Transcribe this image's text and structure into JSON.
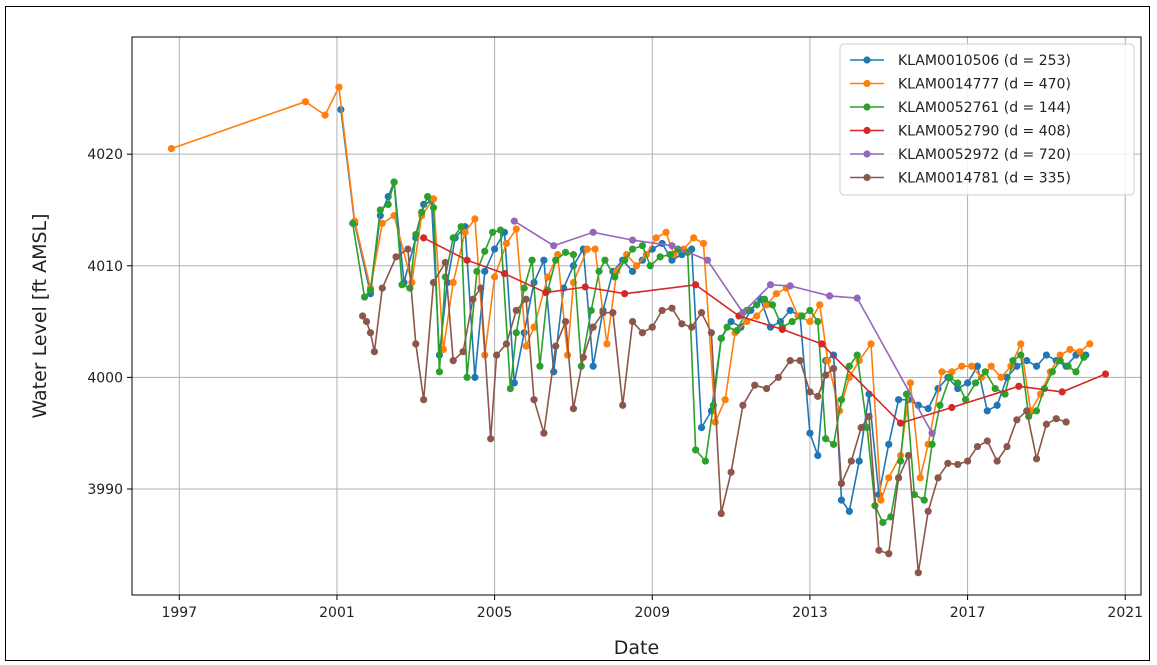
{
  "chart_data": {
    "type": "line",
    "title": "",
    "xlabel": "Date",
    "ylabel": "Water Level [ft AMSL]",
    "xlim": [
      1995.8,
      2021.4
    ],
    "ylim": [
      3980.5,
      4030.5
    ],
    "xticks": [
      1997,
      2001,
      2005,
      2009,
      2013,
      2017,
      2021
    ],
    "yticks": [
      3990,
      4000,
      4010,
      4020
    ],
    "grid": true,
    "legend_position": "top-right",
    "series": [
      {
        "name": "KLAM0010506 (d = 253)",
        "color": "#1f77b4",
        "x": [
          2001.1,
          2001.45,
          2001.85,
          2002.1,
          2002.3,
          2002.45,
          2002.7,
          2003.0,
          2003.2,
          2003.4,
          2003.6,
          2003.8,
          2004.0,
          2004.25,
          2004.5,
          2004.75,
          2005.0,
          2005.25,
          2005.5,
          2005.75,
          2006.0,
          2006.25,
          2006.5,
          2006.75,
          2007.0,
          2007.25,
          2007.5,
          2007.75,
          2008.0,
          2008.25,
          2008.5,
          2008.75,
          2009.0,
          2009.25,
          2009.5,
          2009.75,
          2010.0,
          2010.25,
          2010.5,
          2010.75,
          2011.0,
          2011.25,
          2011.5,
          2011.75,
          2012.0,
          2012.25,
          2012.5,
          2012.75,
          2013.0,
          2013.2,
          2013.4,
          2013.6,
          2013.8,
          2014.0,
          2014.25,
          2014.5,
          2014.75,
          2015.0,
          2015.25,
          2015.5,
          2015.75,
          2016.0,
          2016.25,
          2016.5,
          2016.75,
          2017.0,
          2017.25,
          2017.5,
          2017.75,
          2018.0,
          2018.25,
          2018.5,
          2018.75,
          2019.0,
          2019.25,
          2019.5,
          2019.75,
          2020.0
        ],
        "y": [
          4024.0,
          4013.8,
          4007.5,
          4014.5,
          4016.2,
          4017.5,
          4008.5,
          4012.5,
          4015.5,
          4015.8,
          4002.0,
          4008.5,
          4012.5,
          4013.5,
          4000.0,
          4009.5,
          4011.5,
          4013.0,
          3999.5,
          4004.0,
          4008.5,
          4010.5,
          4000.5,
          4008.0,
          4010.0,
          4011.5,
          4001.0,
          4006.0,
          4009.5,
          4010.5,
          4009.5,
          4010.5,
          4011.5,
          4012.0,
          4010.5,
          4011.0,
          4011.5,
          3995.5,
          3997.0,
          4003.5,
          4005.0,
          4004.5,
          4006.0,
          4007.0,
          4004.5,
          4005.0,
          4006.0,
          4005.5,
          3995.0,
          3993.0,
          4001.5,
          4002.0,
          3989.0,
          3988.0,
          3992.5,
          3998.5,
          3989.5,
          3994.0,
          3998.0,
          3998.0,
          3997.5,
          3997.2,
          3999.0,
          4000.0,
          3999.0,
          3999.5,
          4001.0,
          3997.0,
          3997.5,
          4000.0,
          4001.0,
          4001.5,
          4001.0,
          4002.0,
          4001.5,
          4001.0,
          4002.0,
          4002.0
        ]
      },
      {
        "name": "KLAM0014777 (d = 470)",
        "color": "#ff7f0e",
        "x": [
          1996.8,
          2000.2,
          2000.7,
          2001.05,
          2001.45,
          2001.85,
          2002.15,
          2002.45,
          2002.9,
          2003.15,
          2003.45,
          2003.7,
          2003.95,
          2004.25,
          2004.5,
          2004.75,
          2005.0,
          2005.3,
          2005.55,
          2005.8,
          2006.0,
          2006.35,
          2006.6,
          2006.85,
          2007.0,
          2007.35,
          2007.55,
          2007.85,
          2008.1,
          2008.35,
          2008.6,
          2008.85,
          2009.1,
          2009.35,
          2009.55,
          2009.8,
          2010.05,
          2010.3,
          2010.6,
          2010.85,
          2011.1,
          2011.4,
          2011.65,
          2011.9,
          2012.15,
          2012.4,
          2012.7,
          2013.0,
          2013.25,
          2013.45,
          2013.75,
          2014.0,
          2014.25,
          2014.55,
          2014.8,
          2015.0,
          2015.3,
          2015.55,
          2015.8,
          2016.0,
          2016.35,
          2016.6,
          2016.85,
          2017.1,
          2017.35,
          2017.6,
          2017.85,
          2018.1,
          2018.35,
          2018.6,
          2018.85,
          2019.1,
          2019.35,
          2019.6,
          2019.85,
          2020.1
        ],
        "y": [
          4020.5,
          4024.7,
          4023.5,
          4026.0,
          4014.0,
          4008.0,
          4013.8,
          4014.5,
          4008.5,
          4014.5,
          4016.0,
          4002.5,
          4008.5,
          4013.0,
          4014.2,
          4002.0,
          4009.0,
          4012.0,
          4013.3,
          4002.8,
          4004.5,
          4009.0,
          4011.0,
          4002.0,
          4008.5,
          4011.5,
          4011.5,
          4003.0,
          4009.5,
          4011.0,
          4010.0,
          4011.0,
          4012.5,
          4013.0,
          4011.0,
          4011.5,
          4012.5,
          4012.0,
          3996.0,
          3998.0,
          4004.0,
          4005.0,
          4005.5,
          4006.5,
          4007.5,
          4008.0,
          4005.5,
          4005.0,
          4006.5,
          4001.5,
          3997.0,
          4000.0,
          4001.5,
          4003.0,
          3989.0,
          3991.0,
          3993.0,
          3999.5,
          3991.0,
          3994.0,
          4000.5,
          4000.5,
          4001.0,
          4001.0,
          4000.0,
          4001.0,
          4000.0,
          4001.0,
          4003.0,
          3997.0,
          3998.5,
          4000.5,
          4002.0,
          4002.5,
          4002.3,
          4003.0
        ]
      },
      {
        "name": "KLAM0052761 (d = 144)",
        "color": "#2ca02c",
        "x": [
          2001.4,
          2001.7,
          2001.85,
          2002.1,
          2002.3,
          2002.45,
          2002.65,
          2002.85,
          2003.0,
          2003.15,
          2003.3,
          2003.45,
          2003.6,
          2003.75,
          2003.95,
          2004.15,
          2004.3,
          2004.55,
          2004.75,
          2004.95,
          2005.15,
          2005.4,
          2005.55,
          2005.75,
          2005.95,
          2006.15,
          2006.35,
          2006.55,
          2006.8,
          2007.0,
          2007.2,
          2007.45,
          2007.65,
          2007.8,
          2008.05,
          2008.3,
          2008.5,
          2008.75,
          2008.95,
          2009.2,
          2009.45,
          2009.65,
          2009.9,
          2010.1,
          2010.35,
          2010.55,
          2010.75,
          2010.9,
          2011.15,
          2011.4,
          2011.65,
          2011.85,
          2012.05,
          2012.3,
          2012.55,
          2012.8,
          2013.0,
          2013.2,
          2013.4,
          2013.6,
          2013.8,
          2014.0,
          2014.2,
          2014.45,
          2014.65,
          2014.85,
          2015.05,
          2015.3,
          2015.45,
          2015.65,
          2015.9,
          2016.1,
          2016.3,
          2016.55,
          2016.75,
          2016.95,
          2017.2,
          2017.45,
          2017.7,
          2017.95,
          2018.15,
          2018.35,
          2018.55,
          2018.75,
          2018.95,
          2019.15,
          2019.35,
          2019.55,
          2019.75,
          2019.95
        ],
        "y": [
          4013.8,
          4007.2,
          4007.8,
          4015.0,
          4015.5,
          4017.5,
          4008.3,
          4008.0,
          4012.8,
          4014.8,
          4016.2,
          4015.2,
          4000.5,
          4009.0,
          4012.5,
          4013.5,
          4000.0,
          4009.5,
          4011.3,
          4013.0,
          4013.2,
          3999.0,
          4004.0,
          4008.0,
          4010.5,
          4001.0,
          4007.8,
          4010.5,
          4011.2,
          4011.0,
          4001.0,
          4006.0,
          4009.5,
          4010.5,
          4009.0,
          4010.5,
          4011.5,
          4011.8,
          4010.0,
          4010.8,
          4011.0,
          4011.5,
          4011.2,
          3993.5,
          3992.5,
          3997.5,
          4003.5,
          4004.5,
          4004.2,
          4006.0,
          4006.5,
          4007.0,
          4006.5,
          4004.5,
          4005.0,
          4005.5,
          4006.0,
          4005.0,
          3994.5,
          3994.0,
          3998.0,
          4001.0,
          4002.0,
          3995.5,
          3988.5,
          3987.0,
          3987.5,
          3992.5,
          3998.5,
          3989.5,
          3989.0,
          3994.0,
          3997.5,
          4000.0,
          3999.5,
          3998.0,
          3999.5,
          4000.5,
          3999.0,
          3998.5,
          4001.5,
          4002.0,
          3996.5,
          3997.0,
          3999.0,
          4000.5,
          4001.5,
          4001.0,
          4000.5,
          4001.8
        ]
      },
      {
        "name": "KLAM0052790 (d = 408)",
        "color": "#d62728",
        "x": [
          2003.2,
          2004.3,
          2005.25,
          2006.3,
          2007.3,
          2008.3,
          2010.1,
          2011.2,
          2012.3,
          2013.3,
          2015.3,
          2016.6,
          2018.3,
          2019.4,
          2020.5
        ],
        "y": [
          4012.5,
          4010.5,
          4009.3,
          4007.6,
          4008.1,
          4007.5,
          4008.3,
          4005.5,
          4004.3,
          4003.0,
          3995.9,
          3997.3,
          3999.2,
          3998.7,
          4000.3
        ]
      },
      {
        "name": "KLAM0052972 (d = 720)",
        "color": "#9467bd",
        "x": [
          2005.5,
          2006.5,
          2007.5,
          2008.5,
          2009.5,
          2010.4,
          2011.3,
          2012.0,
          2012.5,
          2013.5,
          2014.2,
          2016.1
        ],
        "y": [
          4014.0,
          4011.8,
          4013.0,
          4012.3,
          4011.8,
          4010.5,
          4005.8,
          4008.3,
          4008.2,
          4007.3,
          4007.1,
          3995.0
        ]
      },
      {
        "name": "KLAM0014781 (d = 335)",
        "color": "#8c564b",
        "x": [
          2001.65,
          2001.75,
          2001.85,
          2001.95,
          2002.15,
          2002.5,
          2002.8,
          2003.0,
          2003.2,
          2003.45,
          2003.75,
          2003.95,
          2004.2,
          2004.45,
          2004.65,
          2004.9,
          2005.05,
          2005.3,
          2005.55,
          2005.8,
          2006.0,
          2006.25,
          2006.55,
          2006.8,
          2007.0,
          2007.25,
          2007.5,
          2007.75,
          2008.0,
          2008.25,
          2008.5,
          2008.75,
          2009.0,
          2009.25,
          2009.5,
          2009.75,
          2010.0,
          2010.25,
          2010.5,
          2010.75,
          2011.0,
          2011.3,
          2011.6,
          2011.9,
          2012.2,
          2012.5,
          2012.75,
          2013.0,
          2013.2,
          2013.4,
          2013.6,
          2013.8,
          2014.05,
          2014.3,
          2014.5,
          2014.75,
          2015.0,
          2015.25,
          2015.5,
          2015.75,
          2016.0,
          2016.25,
          2016.5,
          2016.75,
          2017.0,
          2017.25,
          2017.5,
          2017.75,
          2018.0,
          2018.25,
          2018.5,
          2018.75,
          2019.0,
          2019.25,
          2019.5
        ],
        "y": [
          4005.5,
          4005.0,
          4004.0,
          4002.3,
          4008.0,
          4010.8,
          4011.5,
          4003.0,
          3998.0,
          4008.5,
          4010.3,
          4001.5,
          4002.3,
          4007.0,
          4008.0,
          3994.5,
          4002.0,
          4003.0,
          4006.0,
          4007.0,
          3998.0,
          3995.0,
          4002.8,
          4005.0,
          3997.2,
          4001.8,
          4004.5,
          4005.8,
          4005.8,
          3997.5,
          4005.0,
          4004.0,
          4004.5,
          4006.0,
          4006.2,
          4004.8,
          4004.5,
          4005.8,
          4004.0,
          3987.8,
          3991.5,
          3997.5,
          3999.3,
          3999.0,
          4000.0,
          4001.5,
          4001.5,
          3998.7,
          3998.3,
          4000.2,
          4000.8,
          3990.5,
          3992.5,
          3995.5,
          3996.5,
          3984.5,
          3984.2,
          3991.0,
          3993.0,
          3982.5,
          3988.0,
          3991.0,
          3992.3,
          3992.2,
          3992.5,
          3993.8,
          3994.3,
          3992.5,
          3993.8,
          3996.2,
          3997.0,
          3992.7,
          3995.8,
          3996.3,
          3996.0
        ]
      }
    ]
  }
}
